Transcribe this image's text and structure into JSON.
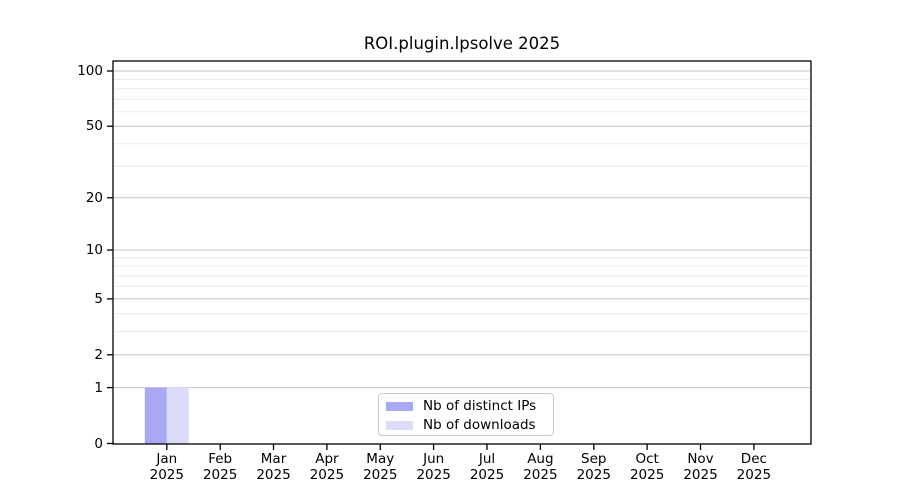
{
  "chart_data": {
    "type": "bar",
    "title": "ROI.plugin.lpsolve 2025",
    "months": [
      "Jan",
      "Feb",
      "Mar",
      "Apr",
      "May",
      "Jun",
      "Jul",
      "Aug",
      "Sep",
      "Oct",
      "Nov",
      "Dec"
    ],
    "year": "2025",
    "series": [
      {
        "name": "Nb of distinct IPs",
        "color": "#a8a8f5",
        "values": [
          1,
          0,
          0,
          0,
          0,
          0,
          0,
          0,
          0,
          0,
          0,
          0
        ]
      },
      {
        "name": "Nb of downloads",
        "color": "#dcdcf8",
        "values": [
          1,
          0,
          0,
          0,
          0,
          0,
          0,
          0,
          0,
          0,
          0,
          0
        ]
      }
    ],
    "y_scale": "log1p",
    "ylim": [
      0,
      100
    ],
    "y_major_ticks": [
      0,
      1,
      2,
      5,
      10,
      20,
      50,
      100
    ],
    "y_minor_gridlines": [
      3,
      4,
      6,
      7,
      8,
      9,
      30,
      40,
      60,
      70,
      80,
      90
    ],
    "grid": "on",
    "legend_position": "inside-bottom-center"
  },
  "colors": {
    "background": "#ffffff",
    "axis": "#000000",
    "major_grid": "#c6c6c6",
    "minor_grid": "#ececec",
    "legend_border": "#c8c8c8",
    "text": "#000000"
  }
}
